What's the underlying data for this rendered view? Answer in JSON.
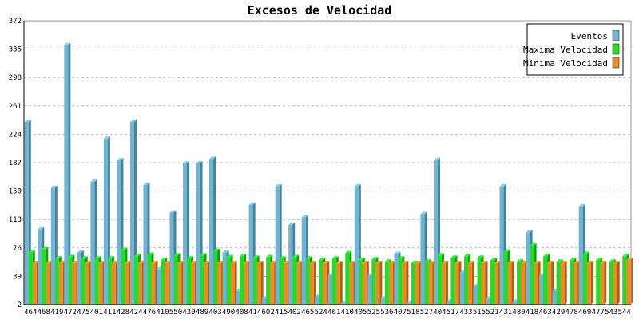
{
  "chart_data": {
    "type": "bar",
    "title": "Excesos de Velocidad",
    "xlabel": "",
    "ylabel": "",
    "ylim": [
      2,
      372
    ],
    "yticks": [
      2,
      39,
      76,
      113,
      150,
      187,
      224,
      261,
      298,
      335,
      372
    ],
    "grid": true,
    "legend_position": "top-right",
    "categories": [
      "464",
      "468",
      "419",
      "472",
      "475",
      "401",
      "411",
      "428",
      "424",
      "476",
      "410",
      "550",
      "430",
      "489",
      "403",
      "490",
      "408",
      "414",
      "602",
      "415",
      "402",
      "465",
      "524",
      "461",
      "410",
      "405",
      "525",
      "536",
      "407",
      "518",
      "527",
      "404",
      "517",
      "433",
      "515",
      "521",
      "431",
      "480",
      "418",
      "463",
      "429",
      "478",
      "469",
      "477",
      "543",
      "544"
    ],
    "series": [
      {
        "name": "Eventos",
        "color": "#6bb6d6",
        "values": [
          240,
          100,
          154,
          340,
          70,
          162,
          218,
          190,
          240,
          158,
          48,
          122,
          186,
          186,
          192,
          70,
          20,
          132,
          10,
          156,
          106,
          116,
          12,
          40,
          4,
          156,
          40,
          10,
          68,
          4,
          120,
          190,
          6,
          44,
          26,
          10,
          156,
          6,
          96,
          40,
          20,
          2,
          130,
          2,
          2,
          2
        ]
      },
      {
        "name": "Maxima Velocidad",
        "color": "#22dd22",
        "values": [
          70,
          74,
          62,
          64,
          62,
          62,
          62,
          73,
          65,
          67,
          60,
          66,
          62,
          66,
          72,
          64,
          65,
          63,
          64,
          62,
          64,
          62,
          60,
          62,
          69,
          60,
          61,
          58,
          62,
          56,
          58,
          66,
          63,
          65,
          63,
          60,
          71,
          58,
          79,
          65,
          58,
          60,
          68,
          60,
          58,
          65
        ]
      },
      {
        "name": "Minima Velocidad",
        "color": "#ee8a22",
        "values": [
          56,
          56,
          56,
          56,
          56,
          56,
          56,
          56,
          56,
          56,
          56,
          56,
          56,
          56,
          56,
          56,
          56,
          56,
          56,
          56,
          56,
          56,
          56,
          56,
          56,
          56,
          56,
          56,
          56,
          56,
          56,
          56,
          56,
          56,
          56,
          56,
          56,
          56,
          56,
          56,
          56,
          56,
          56,
          56,
          56,
          60
        ]
      }
    ]
  },
  "colors": {
    "background": "#ffffff",
    "grid": "#bbbbbb",
    "axis": "#000000",
    "eventos": "#6bb6d6",
    "maxima": "#22dd22",
    "minima": "#ee8a22"
  }
}
